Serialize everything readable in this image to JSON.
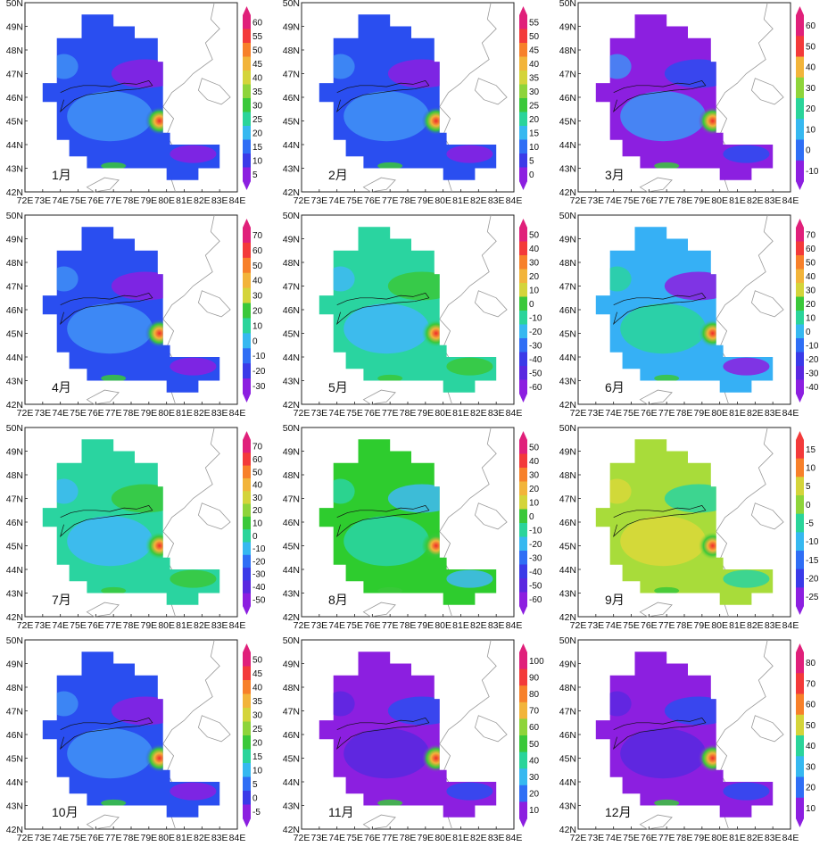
{
  "figure": {
    "lon_ticks": [
      "72E",
      "73E",
      "74E",
      "75E",
      "76E",
      "77E",
      "78E",
      "79E",
      "80E",
      "81E",
      "82E",
      "83E",
      "84E"
    ],
    "lat_ticks": [
      "42N",
      "43N",
      "44N",
      "45N",
      "46N",
      "47N",
      "48N",
      "49N",
      "50N"
    ],
    "domain": {
      "lon": [
        72,
        84
      ],
      "lat": [
        42,
        50
      ]
    },
    "hotspot": {
      "lon": 79.6,
      "lat": 45.0
    }
  },
  "panels": [
    {
      "month": "1月",
      "background": "#2a4ef0",
      "region_a": "#3f8ff5",
      "region_b": "#8c1fe0",
      "hotspot_peak": "#f02a2a",
      "colorbar": [
        "60",
        "55",
        "50",
        "45",
        "40",
        "35",
        "30",
        "25",
        "20",
        "15",
        "10",
        "5"
      ],
      "colors": [
        "#e0207a",
        "#f33a3a",
        "#f7802a",
        "#f2b43a",
        "#d4d43a",
        "#8ed43a",
        "#3ac83a",
        "#2ad49a",
        "#36b8f0",
        "#2f6ef5",
        "#3a3ae8",
        "#8c1fe0"
      ]
    },
    {
      "month": "2月",
      "background": "#2a4ef0",
      "region_a": "#3f8ff5",
      "region_b": "#8c1fe0",
      "hotspot_peak": "#f02a2a",
      "colorbar": [
        "55",
        "50",
        "45",
        "40",
        "35",
        "30",
        "25",
        "20",
        "15",
        "10",
        "5",
        "0"
      ],
      "colors": [
        "#e0207a",
        "#f33a3a",
        "#f7802a",
        "#f2b43a",
        "#d4d43a",
        "#8ed43a",
        "#3ac83a",
        "#2ad49a",
        "#36b8f0",
        "#2f6ef5",
        "#3a3ae8",
        "#8c1fe0"
      ]
    },
    {
      "month": "3月",
      "background": "#8c1fe0",
      "region_a": "#3f8ff5",
      "region_b": "#2a4ef0",
      "hotspot_peak": "#f02a2a",
      "colorbar": [
        "60",
        "50",
        "40",
        "30",
        "20",
        "10",
        "0",
        "-10"
      ],
      "colors": [
        "#e0207a",
        "#f33a3a",
        "#f2b43a",
        "#8ed43a",
        "#2ad49a",
        "#36b8f0",
        "#2f6ef5",
        "#8c1fe0"
      ]
    },
    {
      "month": "4月",
      "background": "#2a4ef0",
      "region_a": "#3f8ff5",
      "region_b": "#8c1fe0",
      "hotspot_peak": "#f02a2a",
      "colorbar": [
        "70",
        "60",
        "50",
        "40",
        "30",
        "20",
        "10",
        "0",
        "-10",
        "-20",
        "-30"
      ],
      "colors": [
        "#e0207a",
        "#f33a3a",
        "#f7802a",
        "#f2b43a",
        "#d4d43a",
        "#3ac83a",
        "#2ad49a",
        "#36b8f0",
        "#2f6ef5",
        "#3a3ae8",
        "#8c1fe0"
      ]
    },
    {
      "month": "5月",
      "background": "#2ad4a0",
      "region_a": "#3fb8f5",
      "region_b": "#3ac83a",
      "hotspot_peak": "#f02a2a",
      "colorbar": [
        "50",
        "40",
        "30",
        "20",
        "10",
        "0",
        "-10",
        "-20",
        "-30",
        "-40",
        "-50",
        "-60"
      ],
      "colors": [
        "#e0207a",
        "#f33a3a",
        "#f7802a",
        "#f2b43a",
        "#d4d43a",
        "#3ac83a",
        "#2ad49a",
        "#36b8f0",
        "#2f6ef5",
        "#3a3ae8",
        "#5a28e0",
        "#8c1fe0"
      ]
    },
    {
      "month": "6月",
      "background": "#36b0f5",
      "region_a": "#2ad4a0",
      "region_b": "#8c1fe0",
      "hotspot_peak": "#f02a2a",
      "colorbar": [
        "70",
        "60",
        "50",
        "40",
        "30",
        "20",
        "10",
        "0",
        "-10",
        "-20",
        "-30",
        "-40"
      ],
      "colors": [
        "#e0207a",
        "#f33a3a",
        "#f7802a",
        "#f2b43a",
        "#d4d43a",
        "#3ac83a",
        "#2ad49a",
        "#36b8f0",
        "#2f6ef5",
        "#3a3ae8",
        "#5a28e0",
        "#8c1fe0"
      ]
    },
    {
      "month": "7月",
      "background": "#2ad4a0",
      "region_a": "#3fb8f5",
      "region_b": "#3ac83a",
      "hotspot_peak": "#f02a2a",
      "colorbar": [
        "70",
        "60",
        "50",
        "40",
        "30",
        "20",
        "10",
        "0",
        "-10",
        "-20",
        "-30",
        "-40",
        "-50"
      ],
      "colors": [
        "#e0207a",
        "#f33a3a",
        "#f7802a",
        "#f2b43a",
        "#d4d43a",
        "#8ed43a",
        "#3ac83a",
        "#2ad49a",
        "#36b8f0",
        "#2f6ef5",
        "#3a3ae8",
        "#5a28e0",
        "#8c1fe0"
      ]
    },
    {
      "month": "8月",
      "background": "#2ecc2e",
      "region_a": "#2ad4a0",
      "region_b": "#3fb8f5",
      "hotspot_peak": "#f02a2a",
      "colorbar": [
        "50",
        "40",
        "30",
        "20",
        "10",
        "0",
        "-10",
        "-20",
        "-30",
        "-40",
        "-50",
        "-60"
      ],
      "colors": [
        "#e0207a",
        "#f33a3a",
        "#f7802a",
        "#f2b43a",
        "#d4d43a",
        "#3ac83a",
        "#2ad49a",
        "#36b8f0",
        "#2f6ef5",
        "#3a3ae8",
        "#5a28e0",
        "#8c1fe0"
      ]
    },
    {
      "month": "9月",
      "background": "#a8dc3a",
      "region_a": "#d8d83a",
      "region_b": "#2ad4a0",
      "hotspot_peak": "#f02a2a",
      "colorbar": [
        "15",
        "10",
        "5",
        "0",
        "-5",
        "-10",
        "-15",
        "-20",
        "-25"
      ],
      "colors": [
        "#f33a3a",
        "#f7802a",
        "#d4d43a",
        "#8ed43a",
        "#2ad49a",
        "#36b8f0",
        "#2f6ef5",
        "#3a3ae8",
        "#8c1fe0"
      ]
    },
    {
      "month": "10月",
      "background": "#2a4ef0",
      "region_a": "#3f8ff5",
      "region_b": "#8c1fe0",
      "hotspot_peak": "#f02a2a",
      "colorbar": [
        "50",
        "45",
        "40",
        "35",
        "30",
        "25",
        "20",
        "15",
        "10",
        "5",
        "0",
        "-5"
      ],
      "colors": [
        "#e0207a",
        "#f33a3a",
        "#f7802a",
        "#f2b43a",
        "#d4d43a",
        "#8ed43a",
        "#3ac83a",
        "#2ad49a",
        "#36b8f0",
        "#2f6ef5",
        "#3a3ae8",
        "#8c1fe0"
      ]
    },
    {
      "month": "11月",
      "background": "#8c1fe0",
      "region_a": "#5a28e0",
      "region_b": "#2a4ef0",
      "hotspot_peak": "#f02a2a",
      "colorbar": [
        "100",
        "90",
        "80",
        "70",
        "60",
        "50",
        "40",
        "30",
        "20",
        "10"
      ],
      "colors": [
        "#e0207a",
        "#f33a3a",
        "#f7802a",
        "#f2b43a",
        "#8ed43a",
        "#3ac83a",
        "#2ad49a",
        "#36b8f0",
        "#2f6ef5",
        "#8c1fe0"
      ]
    },
    {
      "month": "12月",
      "background": "#8c1fe0",
      "region_a": "#5a28e0",
      "region_b": "#2a4ef0",
      "hotspot_peak": "#f02a2a",
      "colorbar": [
        "80",
        "70",
        "60",
        "50",
        "40",
        "30",
        "20",
        "10"
      ],
      "colors": [
        "#e0207a",
        "#f33a3a",
        "#f7802a",
        "#d4d43a",
        "#2ad49a",
        "#36b8f0",
        "#2f6ef5",
        "#8c1fe0"
      ]
    }
  ]
}
